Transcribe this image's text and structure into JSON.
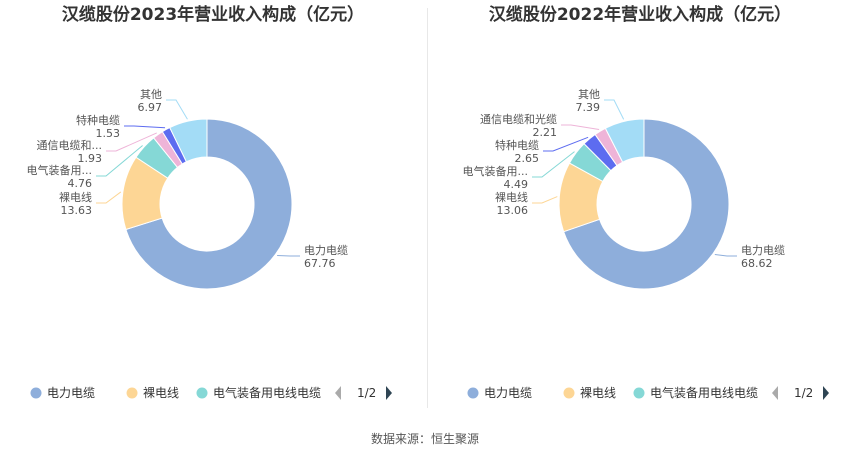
{
  "footer": {
    "source": "数据来源：恒生聚源"
  },
  "chart_data": [
    {
      "type": "pie",
      "title": "汉缆股份2023年营业收入构成（亿元）",
      "slices": [
        {
          "name": "电力电缆",
          "label": "电力电缆",
          "value": 67.76,
          "color": "#8eaedb"
        },
        {
          "name": "裸电线",
          "label": "裸电线",
          "value": 13.63,
          "color": "#fdd695"
        },
        {
          "name": "电气装备用电线电缆",
          "label": "电气装备用...",
          "value": 4.76,
          "color": "#85d8d6"
        },
        {
          "name": "通信电缆和光缆",
          "label": "通信电缆和...",
          "value": 1.93,
          "color": "#eeb4d8"
        },
        {
          "name": "特种电缆",
          "label": "特种电缆",
          "value": 1.53,
          "color": "#5d6cf0"
        },
        {
          "name": "其他",
          "label": "其他",
          "value": 6.97,
          "color": "#a3dcf6"
        }
      ],
      "legend": {
        "visible_items": [
          "电力电缆",
          "裸电线",
          "电气装备用电线电缆"
        ],
        "page": "1/2"
      }
    },
    {
      "type": "pie",
      "title": "汉缆股份2022年营业收入构成（亿元）",
      "slices": [
        {
          "name": "电力电缆",
          "label": "电力电缆",
          "value": 68.62,
          "color": "#8eaedb"
        },
        {
          "name": "裸电线",
          "label": "裸电线",
          "value": 13.06,
          "color": "#fdd695"
        },
        {
          "name": "电气装备用电线电缆",
          "label": "电气装备用...",
          "value": 4.49,
          "color": "#85d8d6"
        },
        {
          "name": "特种电缆",
          "label": "特种电缆",
          "value": 2.65,
          "color": "#5d6cf0"
        },
        {
          "name": "通信电缆和光缆",
          "label": "通信电缆和光缆",
          "value": 2.21,
          "color": "#eeb4d8"
        },
        {
          "name": "其他",
          "label": "其他",
          "value": 7.39,
          "color": "#a3dcf6"
        }
      ],
      "legend": {
        "visible_items": [
          "电力电缆",
          "裸电线",
          "电气装备用电线电缆"
        ],
        "page": "1/2"
      }
    }
  ]
}
